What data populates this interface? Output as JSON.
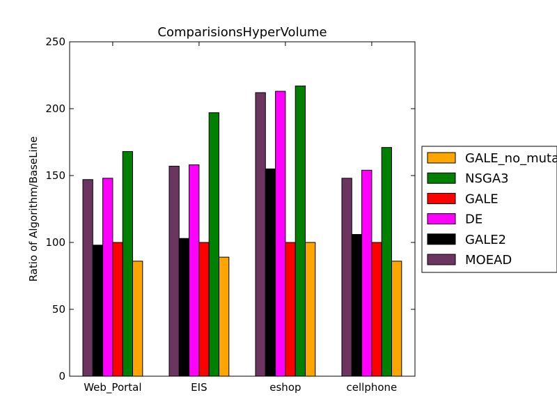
{
  "chart_data": {
    "type": "bar",
    "title": "ComparisionsHyperVolume",
    "xlabel": "",
    "ylabel": "Ratio of Algorithm/BaseLine",
    "ylim": [
      0,
      250
    ],
    "yticks": [
      "0",
      "50",
      "100",
      "150",
      "200",
      "250"
    ],
    "categories": [
      "Web_Portal",
      "EIS",
      "eshop",
      "cellphone"
    ],
    "series": [
      {
        "name": "MOEAD",
        "color": "#6b3560",
        "values": [
          147,
          157,
          212,
          148
        ]
      },
      {
        "name": "GALE2",
        "color": "#000000",
        "values": [
          98,
          103,
          155,
          106
        ]
      },
      {
        "name": "DE",
        "color": "#ff00ff",
        "values": [
          148,
          158,
          213,
          154
        ]
      },
      {
        "name": "GALE",
        "color": "#ff0000",
        "values": [
          100,
          100,
          100,
          100
        ]
      },
      {
        "name": "NSGA3",
        "color": "#008000",
        "values": [
          168,
          197,
          217,
          171
        ]
      },
      {
        "name": "GALE_no_mutation",
        "color": "#ffa500",
        "values": [
          86,
          89,
          100,
          86
        ]
      }
    ],
    "legend_order": [
      "GALE_no_mutation",
      "NSGA3",
      "GALE",
      "DE",
      "GALE2",
      "MOEAD"
    ],
    "legend_position": "right",
    "grid": false
  }
}
